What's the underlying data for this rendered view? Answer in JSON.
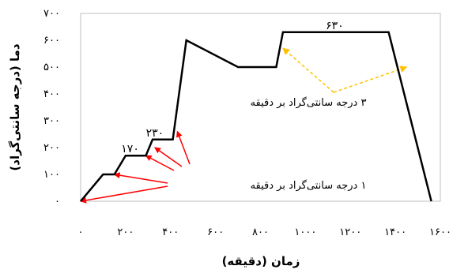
{
  "chart_data": {
    "type": "line",
    "title": "",
    "xlabel": "زمان (دقیقه)",
    "ylabel": "دما (درجه سانتی‌گراد)",
    "xlim": [
      0,
      1600
    ],
    "ylim": [
      0,
      700
    ],
    "x_ticks": [
      0,
      200,
      400,
      600,
      800,
      1000,
      1200,
      1400,
      1600
    ],
    "x_tick_labels": [
      "۰",
      "۲۰۰",
      "۴۰۰",
      "۶۰۰",
      "۸۰۰",
      "۱۰۰۰",
      "۱۲۰۰",
      "۱۴۰۰",
      "۱۶۰۰"
    ],
    "y_ticks": [
      0,
      100,
      200,
      300,
      400,
      500,
      600,
      700
    ],
    "y_tick_labels": [
      "۰",
      "۱۰۰",
      "۲۰۰",
      "۳۰۰",
      "۴۰۰",
      "۵۰۰",
      "۶۰۰",
      "۷۰۰"
    ],
    "grid": false,
    "series": [
      {
        "color": "#000000",
        "x": [
          0,
          100,
          150,
          200,
          290,
          320,
          340,
          390,
          410,
          470,
          700,
          870,
          900,
          960,
          1370,
          1560
        ],
        "y": [
          0,
          100,
          100,
          170,
          170,
          230,
          230,
          230,
          230,
          600,
          500,
          500,
          630,
          630,
          630,
          0
        ]
      }
    ],
    "point_labels": [
      {
        "text": "۱۷۰",
        "x": 220,
        "y": 170
      },
      {
        "text": "۲۳۰",
        "x": 330,
        "y": 230
      },
      {
        "text": "۶۳۰",
        "x": 1130,
        "y": 630
      }
    ],
    "annotations": [
      {
        "text": "۱ درجه سانتی‌گراد بر دقیقه",
        "color": "#ff0000",
        "arrow_targets": [
          {
            "x": 0,
            "y": 0
          },
          {
            "x": 150,
            "y": 100
          },
          {
            "x": 290,
            "y": 170
          },
          {
            "x": 330,
            "y": 200
          },
          {
            "x": 430,
            "y": 260
          }
        ]
      },
      {
        "text": "۳ درجه سانتی‌گراد بر دقیقه",
        "color": "#ffc000",
        "arrow_targets": [
          {
            "x": 900,
            "y": 570
          },
          {
            "x": 1450,
            "y": 500
          }
        ]
      }
    ]
  }
}
